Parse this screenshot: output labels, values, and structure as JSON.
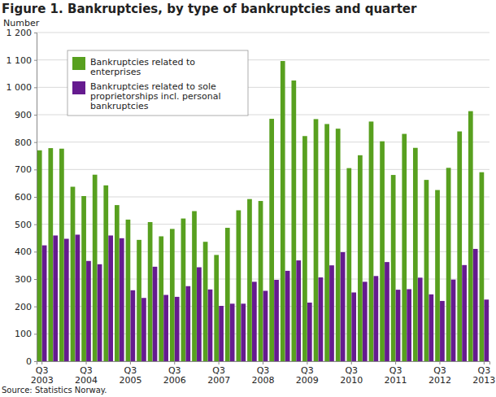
{
  "chart_data": {
    "type": "bar",
    "title": "Figure 1. Bankruptcies, by type of bankruptcies and quarter",
    "y_label": "Number",
    "source": "Source: Statistics Norway.",
    "categories": [
      "Q3 2003",
      null,
      null,
      null,
      "Q3 2004",
      null,
      null,
      null,
      "Q3 2005",
      null,
      null,
      null,
      "Q3 2006",
      null,
      null,
      null,
      "Q3 2007",
      null,
      null,
      null,
      "Q3 2008",
      null,
      null,
      null,
      "Q3 2009",
      null,
      null,
      null,
      "Q3 2010",
      null,
      null,
      null,
      "Q3 2011",
      null,
      null,
      null,
      "Q3 2012",
      null,
      null,
      null,
      "Q3 2013"
    ],
    "series": [
      {
        "name": "Bankruptcies related to enterprises",
        "color": "#58a01f",
        "values": [
          770,
          778,
          776,
          637,
          603,
          681,
          642,
          570,
          517,
          443,
          508,
          456,
          483,
          521,
          548,
          436,
          388,
          487,
          551,
          592,
          585,
          885,
          1096,
          1025,
          822,
          884,
          866,
          849,
          705,
          752,
          875,
          803,
          680,
          830,
          779,
          662,
          625,
          706,
          839,
          913,
          690
        ]
      },
      {
        "name": "Bankruptcies related to sole proprietorships incl. personal bankruptcies",
        "color": "#651b8f",
        "values": [
          423,
          459,
          447,
          462,
          366,
          354,
          459,
          449,
          259,
          231,
          345,
          242,
          235,
          274,
          343,
          262,
          202,
          210,
          210,
          290,
          257,
          297,
          330,
          368,
          214,
          306,
          350,
          398,
          251,
          290,
          311,
          362,
          261,
          263,
          305,
          244,
          220,
          298,
          351,
          410,
          225
        ]
      }
    ],
    "ylim": [
      0,
      1200
    ],
    "yticks": [
      0,
      100,
      200,
      300,
      400,
      500,
      600,
      700,
      800,
      900,
      {
        "value": 1000,
        "label": "1 000"
      },
      {
        "value": 1100,
        "label": "1 100"
      },
      {
        "value": 1200,
        "label": "1 200"
      }
    ],
    "grid": true,
    "legend": "upper left"
  }
}
